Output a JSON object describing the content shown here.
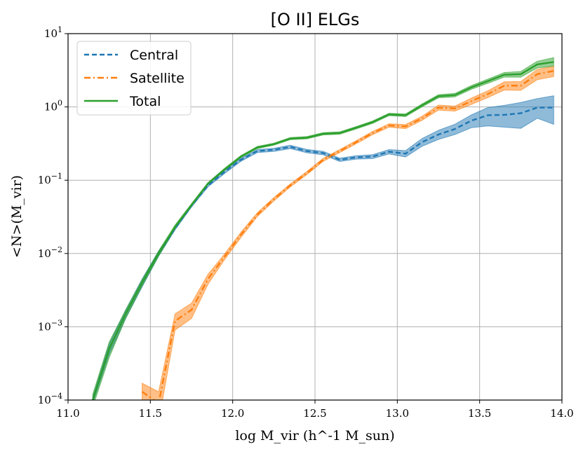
{
  "chart_data": {
    "type": "line",
    "title": "[O II] ELGs",
    "xlabel": "log M_vir (h^-1 M_sun)",
    "ylabel": "<N>(M_vir)",
    "xlim": [
      11.0,
      14.0
    ],
    "ylim_log10": [
      -4,
      1
    ],
    "yscale": "log",
    "grid": true,
    "legend_position": "top-left",
    "x_ticks": [
      "11.0",
      "11.5",
      "12.0",
      "12.5",
      "13.0",
      "13.5",
      "14.0"
    ],
    "y_tick_exponents": [
      "-4",
      "-3",
      "-2",
      "-1",
      "0",
      "1"
    ],
    "series": [
      {
        "name": "Central",
        "color": "#1f77b4",
        "linestyle": "dashed",
        "x": [
          11.15,
          11.25,
          11.35,
          11.45,
          11.55,
          11.65,
          11.75,
          11.85,
          11.95,
          12.05,
          12.15,
          12.25,
          12.35,
          12.45,
          12.55,
          12.65,
          12.75,
          12.85,
          12.95,
          13.05,
          13.15,
          13.25,
          13.35,
          13.45,
          13.55,
          13.65,
          13.75,
          13.85,
          13.95
        ],
        "y": [
          0.0001,
          0.0005,
          0.0015,
          0.004,
          0.01,
          0.022,
          0.045,
          0.085,
          0.13,
          0.19,
          0.25,
          0.26,
          0.285,
          0.25,
          0.235,
          0.19,
          0.205,
          0.21,
          0.245,
          0.23,
          0.33,
          0.42,
          0.5,
          0.65,
          0.77,
          0.78,
          0.82,
          0.98,
          0.98
        ],
        "lower": [
          9e-05,
          0.00042,
          0.0013,
          0.0035,
          0.0092,
          0.021,
          0.043,
          0.081,
          0.123,
          0.181,
          0.238,
          0.247,
          0.27,
          0.237,
          0.222,
          0.18,
          0.194,
          0.197,
          0.228,
          0.207,
          0.29,
          0.36,
          0.42,
          0.52,
          0.55,
          0.53,
          0.51,
          0.7,
          0.58
        ],
        "upper": [
          0.00011,
          0.00058,
          0.0017,
          0.0045,
          0.0108,
          0.023,
          0.047,
          0.089,
          0.137,
          0.199,
          0.262,
          0.273,
          0.3,
          0.263,
          0.248,
          0.2,
          0.216,
          0.223,
          0.262,
          0.253,
          0.37,
          0.48,
          0.58,
          0.78,
          0.98,
          1.05,
          1.15,
          1.3,
          1.42
        ]
      },
      {
        "name": "Satellite",
        "color": "#ff7f0e",
        "linestyle": "dashdot",
        "x": [
          11.45,
          11.55,
          11.65,
          11.75,
          11.85,
          11.95,
          12.05,
          12.15,
          12.25,
          12.35,
          12.45,
          12.55,
          12.65,
          12.75,
          12.85,
          12.95,
          13.05,
          13.15,
          13.25,
          13.35,
          13.45,
          13.55,
          13.65,
          13.75,
          13.85,
          13.95
        ],
        "y": [
          0.00013,
          9e-05,
          0.0012,
          0.0017,
          0.0045,
          0.009,
          0.018,
          0.034,
          0.055,
          0.085,
          0.125,
          0.19,
          0.25,
          0.33,
          0.44,
          0.56,
          0.54,
          0.7,
          0.98,
          0.95,
          1.2,
          1.5,
          1.95,
          1.95,
          2.8,
          3.1
        ],
        "lower": [
          7e-05,
          5e-05,
          0.0009,
          0.0013,
          0.0038,
          0.0082,
          0.0165,
          0.032,
          0.052,
          0.081,
          0.119,
          0.181,
          0.238,
          0.314,
          0.418,
          0.53,
          0.505,
          0.655,
          0.905,
          0.875,
          1.08,
          1.34,
          1.7,
          1.68,
          2.35,
          2.6
        ],
        "upper": [
          0.00017,
          0.00013,
          0.0015,
          0.0021,
          0.0052,
          0.0098,
          0.0195,
          0.036,
          0.058,
          0.089,
          0.131,
          0.199,
          0.262,
          0.346,
          0.462,
          0.59,
          0.575,
          0.745,
          1.06,
          1.025,
          1.32,
          1.66,
          2.2,
          2.22,
          3.25,
          3.6
        ]
      },
      {
        "name": "Total",
        "color": "#2ca02c",
        "linestyle": "solid",
        "x": [
          11.15,
          11.25,
          11.35,
          11.45,
          11.55,
          11.65,
          11.75,
          11.85,
          11.95,
          12.05,
          12.15,
          12.25,
          12.35,
          12.45,
          12.55,
          12.65,
          12.75,
          12.85,
          12.95,
          13.05,
          13.15,
          13.25,
          13.35,
          13.45,
          13.55,
          13.65,
          13.75,
          13.85,
          13.95
        ],
        "y": [
          0.0001,
          0.0005,
          0.0015,
          0.004,
          0.01,
          0.023,
          0.046,
          0.09,
          0.14,
          0.21,
          0.28,
          0.31,
          0.37,
          0.38,
          0.43,
          0.44,
          0.52,
          0.62,
          0.79,
          0.77,
          1.05,
          1.4,
          1.45,
          1.85,
          2.25,
          2.75,
          2.8,
          3.8,
          4.1
        ],
        "lower": [
          8e-05,
          0.00038,
          0.0013,
          0.0036,
          0.0092,
          0.0215,
          0.044,
          0.087,
          0.135,
          0.203,
          0.27,
          0.3,
          0.357,
          0.366,
          0.414,
          0.423,
          0.5,
          0.596,
          0.76,
          0.738,
          1.0,
          1.33,
          1.37,
          1.74,
          2.1,
          2.55,
          2.55,
          3.4,
          3.6
        ],
        "upper": [
          0.00012,
          0.00062,
          0.0017,
          0.0044,
          0.0108,
          0.0245,
          0.048,
          0.093,
          0.145,
          0.217,
          0.29,
          0.32,
          0.383,
          0.394,
          0.446,
          0.457,
          0.54,
          0.644,
          0.82,
          0.802,
          1.1,
          1.47,
          1.53,
          1.96,
          2.4,
          2.95,
          3.05,
          4.2,
          4.7
        ]
      }
    ]
  }
}
